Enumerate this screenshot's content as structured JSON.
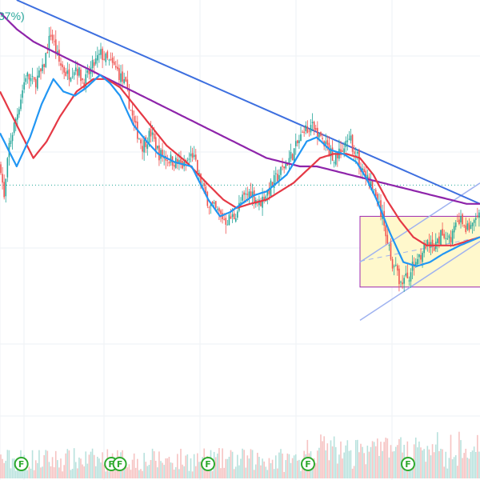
{
  "header": {
    "change_label": "37%)"
  },
  "colors": {
    "up": "#26a69a",
    "down": "#ef5350",
    "ma_fast": "#2196f3",
    "ma_mid": "#e53945",
    "ma_slow": "#8e24aa",
    "trendline": "#3d6fdf",
    "channel": "#9fb2f0",
    "box_fill": "#fff8cc",
    "box_border": "#9c27b0",
    "grid": "#eef0f4",
    "price_line": "#26a69a",
    "volume_up": "#b8e2dd",
    "volume_down": "#f6c3c2",
    "earnings_badge": "#2eaa2e"
  },
  "earnings_badges": [
    {
      "label": "F",
      "x": 8
    },
    {
      "label": "F",
      "x": 62
    },
    {
      "label": "F",
      "x": 67
    },
    {
      "label": "F",
      "x": 120
    },
    {
      "label": "F",
      "x": 180
    },
    {
      "label": "F",
      "x": 240
    }
  ],
  "chart_data": {
    "type": "candlestick",
    "x_range": [
      0,
      288
    ],
    "y_range": [
      0,
      100
    ],
    "grid": true,
    "price_levels": [
      55.5
    ],
    "candles_anchor": [
      [
        0,
        60
      ],
      [
        2,
        52
      ],
      [
        5,
        65
      ],
      [
        10,
        73
      ],
      [
        15,
        82
      ],
      [
        20,
        80
      ],
      [
        25,
        83
      ],
      [
        30,
        92
      ],
      [
        35,
        85
      ],
      [
        40,
        82
      ],
      [
        45,
        84
      ],
      [
        50,
        80
      ],
      [
        55,
        84
      ],
      [
        60,
        87
      ],
      [
        65,
        85
      ],
      [
        70,
        83
      ],
      [
        75,
        79
      ],
      [
        80,
        70
      ],
      [
        85,
        65
      ],
      [
        90,
        68
      ],
      [
        95,
        63
      ],
      [
        100,
        62
      ],
      [
        105,
        61
      ],
      [
        110,
        60
      ],
      [
        115,
        63
      ],
      [
        120,
        56
      ],
      [
        125,
        51
      ],
      [
        130,
        49
      ],
      [
        135,
        47
      ],
      [
        140,
        48
      ],
      [
        145,
        52
      ],
      [
        150,
        54
      ],
      [
        155,
        51
      ],
      [
        160,
        54
      ],
      [
        165,
        57
      ],
      [
        170,
        60
      ],
      [
        175,
        63
      ],
      [
        180,
        67
      ],
      [
        185,
        70
      ],
      [
        190,
        68
      ],
      [
        195,
        65
      ],
      [
        200,
        62
      ],
      [
        205,
        64
      ],
      [
        210,
        66
      ],
      [
        215,
        61
      ],
      [
        220,
        57
      ],
      [
        225,
        53
      ],
      [
        230,
        46
      ],
      [
        235,
        37
      ],
      [
        240,
        32
      ],
      [
        245,
        34
      ],
      [
        250,
        38
      ],
      [
        255,
        41
      ],
      [
        260,
        40
      ],
      [
        265,
        44
      ],
      [
        270,
        43
      ],
      [
        275,
        47
      ],
      [
        280,
        45
      ],
      [
        288,
        48
      ]
    ],
    "ma_fast_anchor": [
      [
        0,
        68
      ],
      [
        10,
        60
      ],
      [
        18,
        67
      ],
      [
        25,
        75
      ],
      [
        32,
        81
      ],
      [
        38,
        78
      ],
      [
        45,
        77
      ],
      [
        52,
        79
      ],
      [
        60,
        82
      ],
      [
        66,
        80
      ],
      [
        72,
        77
      ],
      [
        80,
        70
      ],
      [
        88,
        66
      ],
      [
        95,
        63
      ],
      [
        105,
        61
      ],
      [
        115,
        60
      ],
      [
        125,
        52
      ],
      [
        132,
        48
      ],
      [
        138,
        49
      ],
      [
        145,
        51
      ],
      [
        152,
        53
      ],
      [
        160,
        54
      ],
      [
        166,
        56
      ],
      [
        172,
        58
      ],
      [
        178,
        62
      ],
      [
        184,
        66
      ],
      [
        190,
        67
      ],
      [
        198,
        64
      ],
      [
        206,
        63
      ],
      [
        214,
        61
      ],
      [
        220,
        57
      ],
      [
        226,
        52
      ],
      [
        234,
        44
      ],
      [
        242,
        37
      ],
      [
        250,
        36
      ],
      [
        258,
        37
      ],
      [
        266,
        39
      ],
      [
        276,
        41
      ],
      [
        288,
        43
      ]
    ],
    "ma_mid_anchor": [
      [
        0,
        78
      ],
      [
        10,
        70
      ],
      [
        20,
        62
      ],
      [
        28,
        66
      ],
      [
        36,
        72
      ],
      [
        46,
        78
      ],
      [
        56,
        81
      ],
      [
        64,
        81
      ],
      [
        72,
        79
      ],
      [
        80,
        75
      ],
      [
        90,
        70
      ],
      [
        100,
        65
      ],
      [
        112,
        61
      ],
      [
        124,
        56
      ],
      [
        134,
        52
      ],
      [
        142,
        50
      ],
      [
        150,
        51
      ],
      [
        160,
        52
      ],
      [
        168,
        54
      ],
      [
        176,
        56
      ],
      [
        184,
        59
      ],
      [
        192,
        62
      ],
      [
        200,
        63
      ],
      [
        208,
        63
      ],
      [
        216,
        62
      ],
      [
        224,
        58
      ],
      [
        232,
        52
      ],
      [
        240,
        47
      ],
      [
        248,
        43
      ],
      [
        256,
        41
      ],
      [
        264,
        41
      ],
      [
        272,
        41
      ],
      [
        280,
        42
      ],
      [
        288,
        43
      ]
    ],
    "ma_slow_anchor": [
      [
        0,
        97
      ],
      [
        10,
        93
      ],
      [
        20,
        90
      ],
      [
        30,
        88
      ],
      [
        40,
        86
      ],
      [
        50,
        84
      ],
      [
        60,
        82
      ],
      [
        70,
        80
      ],
      [
        80,
        78
      ],
      [
        90,
        76
      ],
      [
        100,
        74
      ],
      [
        110,
        72
      ],
      [
        120,
        70
      ],
      [
        130,
        68
      ],
      [
        140,
        66
      ],
      [
        150,
        64
      ],
      [
        160,
        62
      ],
      [
        170,
        61
      ],
      [
        180,
        60
      ],
      [
        190,
        60
      ],
      [
        200,
        59
      ],
      [
        210,
        58
      ],
      [
        220,
        57
      ],
      [
        230,
        56
      ],
      [
        240,
        55
      ],
      [
        250,
        54
      ],
      [
        260,
        53
      ],
      [
        270,
        52
      ],
      [
        280,
        51
      ],
      [
        288,
        51
      ]
    ],
    "trendline": [
      [
        10,
        100
      ],
      [
        288,
        51
      ]
    ],
    "channel_lines": [
      [
        [
          216,
          23
        ],
        [
          288,
          42
        ]
      ],
      [
        [
          216,
          37
        ],
        [
          288,
          56
        ]
      ]
    ],
    "range_box": {
      "x": [
        216,
        288
      ],
      "y": [
        31,
        48
      ]
    }
  }
}
